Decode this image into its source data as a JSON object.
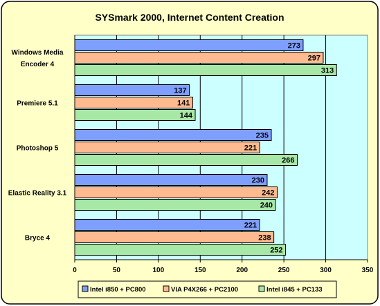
{
  "chart_data": {
    "type": "bar",
    "orientation": "horizontal",
    "title": "SYSmark 2000, Internet Content Creation",
    "xlabel": "",
    "ylabel": "",
    "categories": [
      "Windows Media Encoder 4",
      "Premiere 5.1",
      "Photoshop 5",
      "Elastic Reality 3.1",
      "Bryce 4"
    ],
    "category_lines": [
      [
        "Windows Media",
        "Encoder 4"
      ],
      [
        "Premiere 5.1"
      ],
      [
        "Photoshop 5"
      ],
      [
        "Elastic Reality 3.1"
      ],
      [
        "Bryce 4"
      ]
    ],
    "series": [
      {
        "name": "Intel i850 + PC800",
        "color": "#7f9fff",
        "values": [
          273,
          137,
          235,
          230,
          221
        ]
      },
      {
        "name": "VIA P4X266 + PC2100",
        "color": "#ffbb8f",
        "values": [
          297,
          141,
          221,
          242,
          238
        ]
      },
      {
        "name": "Intel i845 + PC133",
        "color": "#a7e8a7",
        "values": [
          313,
          144,
          266,
          240,
          252
        ]
      }
    ],
    "xlim": [
      0,
      350
    ],
    "ticks": [
      0,
      50,
      100,
      150,
      200,
      250,
      300,
      350
    ],
    "grid": true,
    "legend": "bottom",
    "colors": {
      "background": "#ffffc8",
      "plot_area": "#ccffff",
      "border": "#000000"
    }
  }
}
